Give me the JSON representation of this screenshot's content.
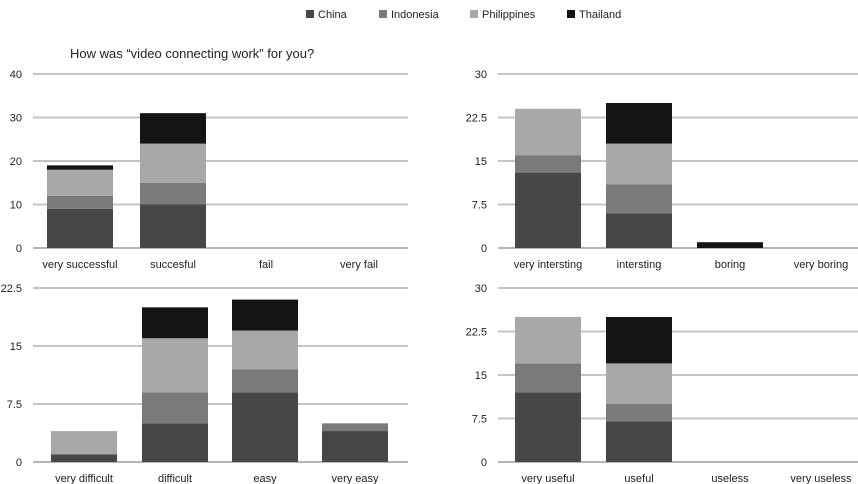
{
  "legend": [
    {
      "name": "China",
      "color": "#474747"
    },
    {
      "name": "Indonesia",
      "color": "#7a7a7a"
    },
    {
      "name": "Philippines",
      "color": "#a8a8a8"
    },
    {
      "name": "Thailand",
      "color": "#141414"
    }
  ],
  "chart_data": [
    {
      "type": "bar",
      "stacked": true,
      "title": "How was “video connecting work” for you?",
      "categories": [
        "very successful",
        "succesful",
        "fail",
        "very fail"
      ],
      "ylim": [
        0,
        40
      ],
      "yticks": [
        "0",
        "10",
        "20",
        "30",
        "40"
      ],
      "grid": true,
      "series": [
        {
          "name": "China",
          "values": [
            9,
            10,
            0,
            0
          ]
        },
        {
          "name": "Indonesia",
          "values": [
            3,
            5,
            0,
            0
          ]
        },
        {
          "name": "Philippines",
          "values": [
            6,
            9,
            0,
            0
          ]
        },
        {
          "name": "Thailand",
          "values": [
            1,
            7,
            0,
            0
          ]
        }
      ]
    },
    {
      "type": "bar",
      "stacked": true,
      "title": "",
      "categories": [
        "very intersting",
        "intersting",
        "boring",
        "very boring"
      ],
      "ylim": [
        0,
        30
      ],
      "yticks": [
        "0",
        "7.5",
        "15",
        "22.5",
        "30"
      ],
      "grid": true,
      "series": [
        {
          "name": "China",
          "values": [
            13,
            6,
            0,
            0
          ]
        },
        {
          "name": "Indonesia",
          "values": [
            3,
            5,
            0,
            0
          ]
        },
        {
          "name": "Philippines",
          "values": [
            8,
            7,
            0,
            0
          ]
        },
        {
          "name": "Thailand",
          "values": [
            0,
            7,
            1,
            0
          ]
        }
      ]
    },
    {
      "type": "bar",
      "stacked": true,
      "title": "",
      "categories": [
        "very difficult",
        "difficult",
        "easy",
        "very easy"
      ],
      "ylim": [
        0,
        22.5
      ],
      "yticks": [
        "0",
        "7.5",
        "15",
        "22.5"
      ],
      "grid": true,
      "series": [
        {
          "name": "China",
          "values": [
            1,
            5,
            9,
            4
          ]
        },
        {
          "name": "Indonesia",
          "values": [
            0,
            4,
            3,
            1
          ]
        },
        {
          "name": "Philippines",
          "values": [
            3,
            7,
            5,
            0
          ]
        },
        {
          "name": "Thailand",
          "values": [
            0,
            4,
            4,
            0
          ]
        }
      ]
    },
    {
      "type": "bar",
      "stacked": true,
      "title": "",
      "categories": [
        "very useful",
        "useful",
        "useless",
        "very useless"
      ],
      "ylim": [
        0,
        30
      ],
      "yticks": [
        "0",
        "7.5",
        "15",
        "22.5",
        "30"
      ],
      "grid": true,
      "series": [
        {
          "name": "China",
          "values": [
            12,
            7,
            0,
            0
          ]
        },
        {
          "name": "Indonesia",
          "values": [
            5,
            3,
            0,
            0
          ]
        },
        {
          "name": "Philippines",
          "values": [
            8,
            7,
            0,
            0
          ]
        },
        {
          "name": "Thailand",
          "values": [
            0,
            8,
            0,
            0
          ]
        }
      ]
    }
  ]
}
